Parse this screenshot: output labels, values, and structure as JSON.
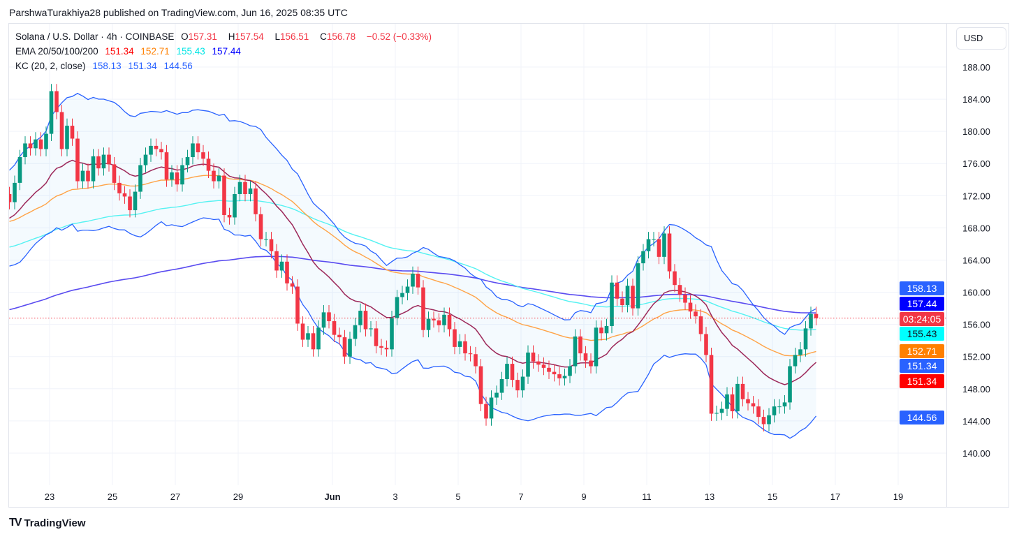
{
  "header": {
    "publisher": "ParshwaTurakhiya28 published on TradingView.com, Jun 16, 2025 08:35 UTC"
  },
  "legend": {
    "symbol": "Solana / U.S. Dollar · 4h · COINBASE",
    "o_label": "O",
    "o": "157.31",
    "h_label": "H",
    "h": "157.54",
    "l_label": "L",
    "l": "156.51",
    "c_label": "C",
    "c": "156.78",
    "change": "−0.52 (−0.33%)",
    "ema_label": "EMA 20/50/100/200",
    "ema_values": [
      "151.34",
      "152.71",
      "155.43",
      "157.44"
    ],
    "kc_label": "KC (20, 2, close)",
    "kc_values": [
      "158.13",
      "151.34",
      "144.56"
    ]
  },
  "currency_button": "USD",
  "price_labels": [
    {
      "text": "158.13",
      "bg": "#2962ff",
      "fg": "#ffffff"
    },
    {
      "text": "157.44",
      "bg": "#0000ff",
      "fg": "#ffffff"
    },
    {
      "text": "03:24:05",
      "bg": "#f23645",
      "fg": "#ffffff"
    },
    {
      "text": "155.43",
      "bg": "#00ffff",
      "fg": "#131722"
    },
    {
      "text": "152.71",
      "bg": "#ff8000",
      "fg": "#ffffff"
    },
    {
      "text": "151.34",
      "bg": "#2962ff",
      "fg": "#ffffff"
    },
    {
      "text": "151.34",
      "bg": "#ff0000",
      "fg": "#ffffff"
    },
    {
      "text": "144.56",
      "bg": "#2962ff",
      "fg": "#ffffff"
    }
  ],
  "footer": {
    "brand": "TradingView"
  },
  "colors": {
    "up": "#089981",
    "down": "#f23645",
    "kc_band": "#2962ff",
    "kc_basis": "#9c2a5c",
    "ema20": "#ff0000",
    "ema50": "#ffa347",
    "ema100": "#55f2f2",
    "ema200": "#5a4cf0",
    "last_price": "#f23645"
  },
  "chart_data": {
    "type": "candlestick",
    "title": "Solana / U.S. Dollar · 4h · COINBASE",
    "ylim": [
      137,
      190
    ],
    "y_ticks": [
      "140.00",
      "144.00",
      "148.00",
      "152.00",
      "156.00",
      "160.00",
      "164.00",
      "168.00",
      "172.00",
      "176.00",
      "180.00",
      "184.00",
      "188.00"
    ],
    "x_ticks": [
      {
        "label": "23",
        "day": 0
      },
      {
        "label": "25",
        "day": 2
      },
      {
        "label": "27",
        "day": 4
      },
      {
        "label": "29",
        "day": 6
      },
      {
        "label": "Jun",
        "day": 9
      },
      {
        "label": "3",
        "day": 11
      },
      {
        "label": "5",
        "day": 13
      },
      {
        "label": "7",
        "day": 15
      },
      {
        "label": "9",
        "day": 17
      },
      {
        "label": "11",
        "day": 19
      },
      {
        "label": "13",
        "day": 21
      },
      {
        "label": "15",
        "day": 23
      },
      {
        "label": "17",
        "day": 25
      },
      {
        "label": "19",
        "day": 27
      }
    ],
    "first_open": 172.2,
    "close": [
      171.2,
      173.6,
      176.8,
      178.5,
      177.9,
      179,
      177.8,
      179.7,
      185,
      182.4,
      177.8,
      180.7,
      179.1,
      173.8,
      175.1,
      173.8,
      176.9,
      175.4,
      177.1,
      175.9,
      173.6,
      172.3,
      171.9,
      170.2,
      172.5,
      175.8,
      177.1,
      178.2,
      177.8,
      177.4,
      174,
      174.9,
      173.4,
      175.8,
      176.8,
      178.5,
      177.4,
      176.6,
      175.1,
      173.8,
      174.5,
      169.6,
      169.3,
      172.2,
      173.7,
      172.2,
      172.9,
      169.7,
      166.6,
      166.6,
      165.1,
      162.7,
      163.8,
      161.1,
      160.7,
      156.1,
      154.1,
      154.9,
      152.9,
      155.6,
      157.5,
      156.4,
      154.7,
      154.4,
      152,
      154.2,
      155.9,
      157.7,
      155.4,
      155.5,
      153.3,
      153.1,
      152.9,
      156.8,
      159.4,
      159.9,
      160.7,
      162.3,
      160.6,
      155.3,
      156.7,
      156.5,
      155.9,
      157.2,
      155.4,
      153.2,
      153.9,
      152.4,
      152.3,
      150.8,
      146.1,
      144.3,
      146.9,
      147.5,
      149.2,
      151.1,
      149.1,
      147.8,
      149.5,
      152.5,
      151.4,
      151,
      150.6,
      150.1,
      149.8,
      149.3,
      149.6,
      150.8,
      154.5,
      152.4,
      151.5,
      150.8,
      155.6,
      154.9,
      155.8,
      161.2,
      159.2,
      158.4,
      160.8,
      158,
      163.6,
      165.1,
      166.6,
      166.6,
      164.4,
      167.3,
      162.6,
      160.9,
      159.7,
      158.7,
      157.6,
      157,
      154.8,
      152.2,
      144.9,
      145,
      145.5,
      147.3,
      145.2,
      148.6,
      146.7,
      146.2,
      145.8,
      144.5,
      143.6,
      144.7,
      145.8,
      145.8,
      146.3,
      150.8,
      152.2,
      152.9,
      155.5,
      157.3,
      156.78
    ],
    "ema_start": [
      169.0,
      168.7,
      165.5,
      157.7
    ],
    "atr_start": 3.0,
    "last_price": 156.78
  }
}
